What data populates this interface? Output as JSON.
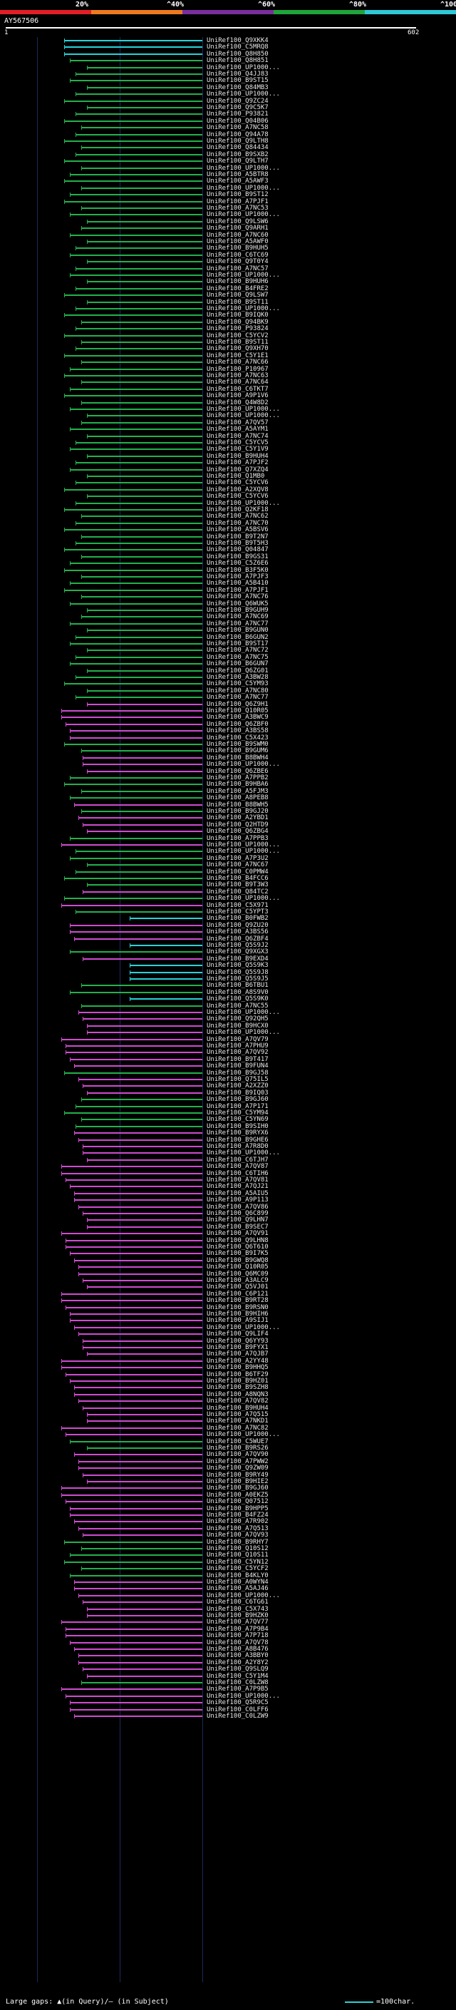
{
  "legend": {
    "labels": [
      "20%",
      "^40%",
      "^60%",
      "^80%",
      "^100%"
    ],
    "colors": [
      "#e21f26",
      "#ec7b1f",
      "#7a2f9e",
      "#1fa43a",
      "#2ec8d8"
    ]
  },
  "query": {
    "title": "AY567506",
    "scale_start": "1",
    "scale_end": "602"
  },
  "colors": {
    "cyan": "#26d3d9",
    "green": "#22b14c",
    "magenta": "#d04bd0",
    "gap": "#b0b0b0"
  },
  "hits": [
    {
      "label": "UniRef100_Q9XKK4",
      "color": "cyan"
    },
    {
      "label": "UniRef100_C5MRQ8",
      "color": "cyan"
    },
    {
      "label": "UniRef100_Q8H850",
      "color": "cyan"
    },
    {
      "label": "UniRef100_Q8H851",
      "color": "green"
    },
    {
      "label": "UniRef100_UP1000...",
      "color": "green"
    },
    {
      "label": "UniRef100_Q4JJ83",
      "color": "green"
    },
    {
      "label": "UniRef100_B9ST15",
      "color": "green"
    },
    {
      "label": "UniRef100_Q84MB3",
      "color": "green"
    },
    {
      "label": "UniRef100_UP1000...",
      "color": "green"
    },
    {
      "label": "UniRef100_Q9ZC24",
      "color": "green"
    },
    {
      "label": "UniRef100_Q9C5K7",
      "color": "green"
    },
    {
      "label": "UniRef100_P93821",
      "color": "green"
    },
    {
      "label": "UniRef100_Q04B06",
      "color": "green"
    },
    {
      "label": "UniRef100_A7NC58",
      "color": "green"
    },
    {
      "label": "UniRef100_Q94A78",
      "color": "green"
    },
    {
      "label": "UniRef100_Q9LTH8",
      "color": "green"
    },
    {
      "label": "UniRef100_Q84434",
      "color": "green"
    },
    {
      "label": "UniRef100_B9SXB2",
      "color": "green"
    },
    {
      "label": "UniRef100_Q9LTH7",
      "color": "green"
    },
    {
      "label": "UniRef100_UP1000...",
      "color": "green"
    },
    {
      "label": "UniRef100_A5BTR8",
      "color": "green"
    },
    {
      "label": "UniRef100_A5AWF3",
      "color": "green"
    },
    {
      "label": "UniRef100_UP1000...",
      "color": "green"
    },
    {
      "label": "UniRef100_B9ST12",
      "color": "green"
    },
    {
      "label": "UniRef100_A7PJF1",
      "color": "green"
    },
    {
      "label": "UniRef100_A7NC53",
      "color": "green"
    },
    {
      "label": "UniRef100_UP1000...",
      "color": "green"
    },
    {
      "label": "UniRef100_Q9LSW6",
      "color": "green"
    },
    {
      "label": "UniRef100_Q9ARH1",
      "color": "green"
    },
    {
      "label": "UniRef100_A7NC60",
      "color": "green"
    },
    {
      "label": "UniRef100_A5AWF0",
      "color": "green"
    },
    {
      "label": "UniRef100_B9HUH5",
      "color": "green"
    },
    {
      "label": "UniRef100_C6TC69",
      "color": "green"
    },
    {
      "label": "UniRef100_Q9T0Y4",
      "color": "green"
    },
    {
      "label": "UniRef100_A7NC57",
      "color": "green"
    },
    {
      "label": "UniRef100_UP1000...",
      "color": "green"
    },
    {
      "label": "UniRef100_B9HUH6",
      "color": "green"
    },
    {
      "label": "UniRef100_B4FRE2",
      "color": "green"
    },
    {
      "label": "UniRef100_Q9LSW7",
      "color": "green"
    },
    {
      "label": "UniRef100_B9ST11",
      "color": "green"
    },
    {
      "label": "UniRef100_UP1000...",
      "color": "green"
    },
    {
      "label": "UniRef100_B9IQK0",
      "color": "green"
    },
    {
      "label": "UniRef100_Q94BK9",
      "color": "green"
    },
    {
      "label": "UniRef100_P93824",
      "color": "green"
    },
    {
      "label": "UniRef100_C5YCV2",
      "color": "green"
    },
    {
      "label": "UniRef100_B9ST11",
      "color": "green"
    },
    {
      "label": "UniRef100_Q9XH70",
      "color": "green"
    },
    {
      "label": "UniRef100_C5Y1E1",
      "color": "green"
    },
    {
      "label": "UniRef100_A7NC66",
      "color": "green"
    },
    {
      "label": "UniRef100_P10967",
      "color": "green"
    },
    {
      "label": "UniRef100_A7NC63",
      "color": "green"
    },
    {
      "label": "UniRef100_A7NC64",
      "color": "green"
    },
    {
      "label": "UniRef100_C6TKT7",
      "color": "green"
    },
    {
      "label": "UniRef100_A9P1V6",
      "color": "green"
    },
    {
      "label": "UniRef100_Q4W8D2",
      "color": "green"
    },
    {
      "label": "UniRef100_UP1000...",
      "color": "green"
    },
    {
      "label": "UniRef100_UP1000...",
      "color": "green"
    },
    {
      "label": "UniRef100_A7QV57",
      "color": "green"
    },
    {
      "label": "UniRef100_A5AYM1",
      "color": "green"
    },
    {
      "label": "UniRef100_A7NC74",
      "color": "green"
    },
    {
      "label": "UniRef100_C5YCV5",
      "color": "green"
    },
    {
      "label": "UniRef100_C5Y1V9",
      "color": "green"
    },
    {
      "label": "UniRef100_B9HUH4",
      "color": "green"
    },
    {
      "label": "UniRef100_A7PJF2",
      "color": "green"
    },
    {
      "label": "UniRef100_Q7XZQ4",
      "color": "green"
    },
    {
      "label": "UniRef100_Q1MB0",
      "color": "green"
    },
    {
      "label": "UniRef100_C5YCV6",
      "color": "green"
    },
    {
      "label": "UniRef100_A2XQV8",
      "color": "green"
    },
    {
      "label": "UniRef100_C5YCV6",
      "color": "green"
    },
    {
      "label": "UniRef100_UP1000...",
      "color": "green"
    },
    {
      "label": "UniRef100_Q2KF18",
      "color": "green"
    },
    {
      "label": "UniRef100_A7NC62",
      "color": "green"
    },
    {
      "label": "UniRef100_A7NC70",
      "color": "green"
    },
    {
      "label": "UniRef100_A5BSV6",
      "color": "green"
    },
    {
      "label": "UniRef100_B9T2N7",
      "color": "green"
    },
    {
      "label": "UniRef100_B9T5H3",
      "color": "green"
    },
    {
      "label": "UniRef100_Q04847",
      "color": "green"
    },
    {
      "label": "UniRef100_B9GS31",
      "color": "green"
    },
    {
      "label": "UniRef100_C5Z6E6",
      "color": "green"
    },
    {
      "label": "UniRef100_B3F5K0",
      "color": "green"
    },
    {
      "label": "UniRef100_A7PJF3",
      "color": "green"
    },
    {
      "label": "UniRef100_A5B410",
      "color": "green"
    },
    {
      "label": "UniRef100_A7PJF1",
      "color": "green"
    },
    {
      "label": "UniRef100_A7NC76",
      "color": "green"
    },
    {
      "label": "UniRef100_Q6WUK5",
      "color": "green"
    },
    {
      "label": "UniRef100_B9GUH9",
      "color": "green"
    },
    {
      "label": "UniRef100_A7NC69",
      "color": "green"
    },
    {
      "label": "UniRef100_A7NC77",
      "color": "green"
    },
    {
      "label": "UniRef100_B9GUN0",
      "color": "green"
    },
    {
      "label": "UniRef100_B6GUN2",
      "color": "green"
    },
    {
      "label": "UniRef100_B9ST17",
      "color": "green"
    },
    {
      "label": "UniRef100_A7NC72",
      "color": "green"
    },
    {
      "label": "UniRef100_A7NC75",
      "color": "green"
    },
    {
      "label": "UniRef100_B6GUN7",
      "color": "green"
    },
    {
      "label": "UniRef100_Q6ZG01",
      "color": "green"
    },
    {
      "label": "UniRef100_A3BW28",
      "color": "green"
    },
    {
      "label": "UniRef100_C5YM93",
      "color": "green"
    },
    {
      "label": "UniRef100_A7NC80",
      "color": "green"
    },
    {
      "label": "UniRef100_A7NC77",
      "color": "green"
    },
    {
      "label": "UniRef100_Q6Z9H1",
      "color": "magenta"
    },
    {
      "label": "UniRef100_Q10R05",
      "color": "magenta"
    },
    {
      "label": "UniRef100_A3BWC9",
      "color": "magenta"
    },
    {
      "label": "UniRef100_Q6ZBF0",
      "color": "magenta"
    },
    {
      "label": "UniRef100_A3BS58",
      "color": "magenta"
    },
    {
      "label": "UniRef100_C5X423",
      "color": "magenta"
    },
    {
      "label": "UniRef100_B9SWM0",
      "color": "green"
    },
    {
      "label": "UniRef100_B9GUM6",
      "color": "green"
    },
    {
      "label": "UniRef100_B8BWH4",
      "color": "magenta"
    },
    {
      "label": "UniRef100_UP1000...",
      "color": "magenta"
    },
    {
      "label": "UniRef100_Q6ZBE6",
      "color": "magenta"
    },
    {
      "label": "UniRef100_A7PPB2",
      "color": "green"
    },
    {
      "label": "UniRef100_B9HBA6",
      "color": "green"
    },
    {
      "label": "UniRef100_A5FJM3",
      "color": "green"
    },
    {
      "label": "UniRef100_A8PEB8",
      "color": "green"
    },
    {
      "label": "UniRef100_B8BWH5",
      "color": "magenta"
    },
    {
      "label": "UniRef100_B9GJ20",
      "color": "green"
    },
    {
      "label": "UniRef100_A2YBD1",
      "color": "magenta"
    },
    {
      "label": "UniRef100_Q2HTD9",
      "color": "magenta"
    },
    {
      "label": "UniRef100_Q6ZBG4",
      "color": "magenta"
    },
    {
      "label": "UniRef100_A7PPB3",
      "color": "green"
    },
    {
      "label": "UniRef100_UP1000...",
      "color": "magenta"
    },
    {
      "label": "UniRef100_UP1000...",
      "color": "green"
    },
    {
      "label": "UniRef100_A7P3U2",
      "color": "green"
    },
    {
      "label": "UniRef100_A7NC67",
      "color": "green"
    },
    {
      "label": "UniRef100_C0PMW4",
      "color": "green"
    },
    {
      "label": "UniRef100_B4FCC6",
      "color": "green"
    },
    {
      "label": "UniRef100_B9T3W3",
      "color": "green"
    },
    {
      "label": "UniRef100_Q84TC2",
      "color": "magenta"
    },
    {
      "label": "UniRef100_UP1000...",
      "color": "green"
    },
    {
      "label": "UniRef100_C5X971",
      "color": "magenta"
    },
    {
      "label": "UniRef100_C5YPT3",
      "color": "green"
    },
    {
      "label": "UniRef100_B0FWB2",
      "color": "cyan"
    },
    {
      "label": "UniRef100_Q9ZU20",
      "color": "magenta"
    },
    {
      "label": "UniRef100_A3BS56",
      "color": "magenta"
    },
    {
      "label": "UniRef100_Q6ZBF4",
      "color": "magenta"
    },
    {
      "label": "UniRef100_Q5S9J2",
      "color": "cyan"
    },
    {
      "label": "UniRef100_Q9XGX3",
      "color": "green"
    },
    {
      "label": "UniRef100_B9EXD4",
      "color": "magenta"
    },
    {
      "label": "UniRef100_Q5S9K3",
      "color": "cyan"
    },
    {
      "label": "UniRef100_Q5S9J8",
      "color": "cyan"
    },
    {
      "label": "UniRef100_Q5S9J5",
      "color": "cyan"
    },
    {
      "label": "UniRef100_B6TBU1",
      "color": "green"
    },
    {
      "label": "UniRef100_A8S9V0",
      "color": "green"
    },
    {
      "label": "UniRef100_Q5S9K0",
      "color": "cyan"
    },
    {
      "label": "UniRef100_A7NC55",
      "color": "green"
    },
    {
      "label": "UniRef100_UP1000...",
      "color": "magenta"
    },
    {
      "label": "UniRef100_Q92QH5",
      "color": "magenta"
    },
    {
      "label": "UniRef100_B9HCX0",
      "color": "magenta"
    },
    {
      "label": "UniRef100_UP1000...",
      "color": "magenta"
    },
    {
      "label": "UniRef100_A7QV79",
      "color": "magenta"
    },
    {
      "label": "UniRef100_A7PHU9",
      "color": "magenta"
    },
    {
      "label": "UniRef100_A7QV92",
      "color": "magenta"
    },
    {
      "label": "UniRef100_B9T417",
      "color": "magenta"
    },
    {
      "label": "UniRef100_B9FUN4",
      "color": "magenta"
    },
    {
      "label": "UniRef100_B9GJ58",
      "color": "green"
    },
    {
      "label": "UniRef100_Q75IL5",
      "color": "magenta"
    },
    {
      "label": "UniRef100_A2XZZ0",
      "color": "magenta"
    },
    {
      "label": "UniRef100_B9IQ03",
      "color": "magenta"
    },
    {
      "label": "UniRef100_B9GJ60",
      "color": "green"
    },
    {
      "label": "UniRef100_A7P171",
      "color": "green"
    },
    {
      "label": "UniRef100_C5YM94",
      "color": "green"
    },
    {
      "label": "UniRef100_C5YN69",
      "color": "green"
    },
    {
      "label": "UniRef100_B9SIH0",
      "color": "green"
    },
    {
      "label": "UniRef100_B9RYX6",
      "color": "magenta"
    },
    {
      "label": "UniRef100_B9GHE6",
      "color": "magenta"
    },
    {
      "label": "UniRef100_A7R8D0",
      "color": "magenta"
    },
    {
      "label": "UniRef100_UP1000...",
      "color": "magenta"
    },
    {
      "label": "UniRef100_C6TJH7",
      "color": "magenta"
    },
    {
      "label": "UniRef100_A7QV87",
      "color": "magenta"
    },
    {
      "label": "UniRef100_C6TIH6",
      "color": "magenta"
    },
    {
      "label": "UniRef100_A7QV81",
      "color": "magenta"
    },
    {
      "label": "UniRef100_A7QJ21",
      "color": "magenta"
    },
    {
      "label": "UniRef100_A5AIU5",
      "color": "magenta"
    },
    {
      "label": "UniRef100_A9P113",
      "color": "magenta"
    },
    {
      "label": "UniRef100_A7QV86",
      "color": "magenta"
    },
    {
      "label": "UniRef100_Q6C899",
      "color": "magenta"
    },
    {
      "label": "UniRef100_Q9LHN7",
      "color": "magenta"
    },
    {
      "label": "UniRef100_B9SEC7",
      "color": "magenta"
    },
    {
      "label": "UniRef100_A7QV91",
      "color": "magenta"
    },
    {
      "label": "UniRef100_Q9LHN8",
      "color": "magenta"
    },
    {
      "label": "UniRef100_Q6T610",
      "color": "magenta"
    },
    {
      "label": "UniRef100_B9I7K5",
      "color": "magenta"
    },
    {
      "label": "UniRef100_B9GWQ8",
      "color": "magenta"
    },
    {
      "label": "UniRef100_Q10R05",
      "color": "magenta"
    },
    {
      "label": "UniRef100_Q6MC09",
      "color": "magenta"
    },
    {
      "label": "UniRef100_A3ALC9",
      "color": "magenta"
    },
    {
      "label": "UniRef100_Q5VJ01",
      "color": "magenta"
    },
    {
      "label": "UniRef100_C6P121",
      "color": "magenta"
    },
    {
      "label": "UniRef100_B9RT28",
      "color": "magenta"
    },
    {
      "label": "UniRef100_B9RSN0",
      "color": "magenta"
    },
    {
      "label": "UniRef100_B9HIH6",
      "color": "magenta"
    },
    {
      "label": "UniRef100_A9SIJ1",
      "color": "magenta"
    },
    {
      "label": "UniRef100_UP1000...",
      "color": "magenta"
    },
    {
      "label": "UniRef100_Q9LIF4",
      "color": "magenta"
    },
    {
      "label": "UniRef100_Q6YY93",
      "color": "magenta"
    },
    {
      "label": "UniRef100_B9FYX1",
      "color": "magenta"
    },
    {
      "label": "UniRef100_A7QJB7",
      "color": "magenta"
    },
    {
      "label": "UniRef100_A2YY48",
      "color": "magenta"
    },
    {
      "label": "UniRef100_B9HHQ5",
      "color": "magenta"
    },
    {
      "label": "UniRef100_B6TF29",
      "color": "magenta"
    },
    {
      "label": "UniRef100_B9HZ01",
      "color": "magenta"
    },
    {
      "label": "UniRef100_B9SZH8",
      "color": "magenta"
    },
    {
      "label": "UniRef100_A8NQN3",
      "color": "magenta"
    },
    {
      "label": "UniRef100_A7QV82",
      "color": "magenta"
    },
    {
      "label": "UniRef100_B9HUH4",
      "color": "magenta"
    },
    {
      "label": "UniRef100_A7Q515",
      "color": "magenta"
    },
    {
      "label": "UniRef100_A7NKD1",
      "color": "magenta"
    },
    {
      "label": "UniRef100_A7NC82",
      "color": "magenta"
    },
    {
      "label": "UniRef100_UP1000...",
      "color": "magenta"
    },
    {
      "label": "UniRef100_C5WUE7",
      "color": "green"
    },
    {
      "label": "UniRef100_B9RS26",
      "color": "green"
    },
    {
      "label": "UniRef100_A7QV90",
      "color": "magenta"
    },
    {
      "label": "UniRef100_A7PWW2",
      "color": "magenta"
    },
    {
      "label": "UniRef100_Q9ZW09",
      "color": "magenta"
    },
    {
      "label": "UniRef100_B9RY49",
      "color": "magenta"
    },
    {
      "label": "UniRef100_B9HIE2",
      "color": "magenta"
    },
    {
      "label": "UniRef100_B9GJ60",
      "color": "magenta"
    },
    {
      "label": "UniRef100_A0EKZ5",
      "color": "magenta"
    },
    {
      "label": "UniRef100_Q07512",
      "color": "magenta"
    },
    {
      "label": "UniRef100_B9HPP5",
      "color": "magenta"
    },
    {
      "label": "UniRef100_B4FZ24",
      "color": "magenta"
    },
    {
      "label": "UniRef100_A7R902",
      "color": "magenta"
    },
    {
      "label": "UniRef100_A7Q513",
      "color": "magenta"
    },
    {
      "label": "UniRef100_A7QV93",
      "color": "magenta"
    },
    {
      "label": "UniRef100_B9RHY7",
      "color": "green"
    },
    {
      "label": "UniRef100_Q10S12",
      "color": "green"
    },
    {
      "label": "UniRef100_Q10S11",
      "color": "green"
    },
    {
      "label": "UniRef100_C5YN12",
      "color": "green"
    },
    {
      "label": "UniRef100_C5YCF2",
      "color": "green"
    },
    {
      "label": "UniRef100_B4KLY0",
      "color": "green"
    },
    {
      "label": "UniRef100_A0WYN4",
      "color": "magenta"
    },
    {
      "label": "UniRef100_A5AJ46",
      "color": "magenta"
    },
    {
      "label": "UniRef100_UP1000...",
      "color": "magenta"
    },
    {
      "label": "UniRef100_C6TG61",
      "color": "magenta"
    },
    {
      "label": "UniRef100_C5X743",
      "color": "magenta"
    },
    {
      "label": "UniRef100_B9HZK0",
      "color": "magenta"
    },
    {
      "label": "UniRef100_A7QV77",
      "color": "magenta"
    },
    {
      "label": "UniRef100_A7P9B4",
      "color": "magenta"
    },
    {
      "label": "UniRef100_A7P718",
      "color": "magenta"
    },
    {
      "label": "UniRef100_A7QV78",
      "color": "magenta"
    },
    {
      "label": "UniRef100_A8B476",
      "color": "magenta"
    },
    {
      "label": "UniRef100_A3BBY0",
      "color": "magenta"
    },
    {
      "label": "UniRef100_A2Y8Y2",
      "color": "magenta"
    },
    {
      "label": "UniRef100_Q9SLQ9",
      "color": "magenta"
    },
    {
      "label": "UniRef100_C5Y1M4",
      "color": "magenta"
    },
    {
      "label": "UniRef100_C0LZW8",
      "color": "green"
    },
    {
      "label": "UniRef100_A7P9B5",
      "color": "magenta"
    },
    {
      "label": "UniRef100_UP1000...",
      "color": "magenta"
    },
    {
      "label": "UniRef100_Q5R9C5",
      "color": "magenta"
    },
    {
      "label": "UniRef100_C0LFF6",
      "color": "magenta"
    },
    {
      "label": "UniRef100_C0LZW9",
      "color": "magenta"
    }
  ],
  "footer": {
    "text": "Large gaps: ▲(in Query)/— (in Subject)",
    "scale_text": "=100char."
  }
}
